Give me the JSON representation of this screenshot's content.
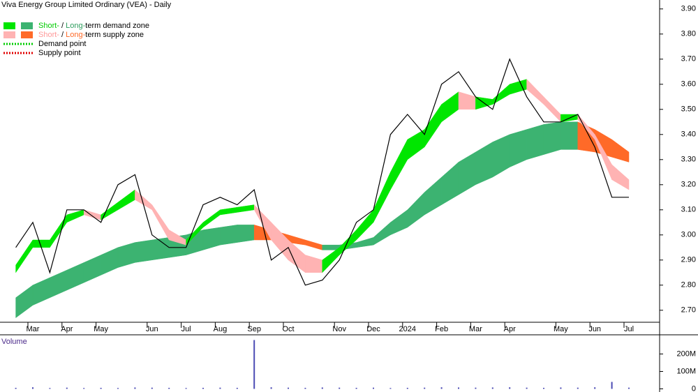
{
  "chart_data": [
    {
      "type": "price-bands",
      "title": "Viva Energy Group Limited Ordinary (VEA) - Daily",
      "categories": [
        null,
        "Mar",
        null,
        "Apr",
        null,
        "May",
        null,
        null,
        "Jun",
        null,
        "Jul",
        null,
        "Aug",
        null,
        "Sep",
        null,
        "Oct",
        null,
        null,
        "Nov",
        null,
        "Dec",
        null,
        "2024",
        null,
        "Feb",
        null,
        "Mar",
        null,
        "Apr",
        null,
        null,
        "May",
        null,
        "Jun",
        null,
        "Jul"
      ],
      "close": [
        2.95,
        3.05,
        2.85,
        3.1,
        3.1,
        3.05,
        3.2,
        3.24,
        3.0,
        2.95,
        2.95,
        3.12,
        3.15,
        3.12,
        3.18,
        2.9,
        2.95,
        2.8,
        2.82,
        2.9,
        3.05,
        3.1,
        3.4,
        3.48,
        3.4,
        3.6,
        3.65,
        3.55,
        3.5,
        3.7,
        3.55,
        3.45,
        3.45,
        3.48,
        3.35,
        3.15,
        3.15
      ],
      "close_color": "#000000",
      "bands": [
        {
          "upper": [
            2.75,
            2.8,
            2.83,
            2.86,
            2.89,
            2.92,
            2.95,
            2.97,
            2.98,
            2.99,
            3.0,
            3.02,
            3.03,
            3.04,
            3.04,
            3.02,
            3.0,
            2.98,
            2.96,
            2.96,
            2.97,
            2.99,
            3.05,
            3.1,
            3.17,
            3.23,
            3.29,
            3.33,
            3.37,
            3.4,
            3.42,
            3.44,
            3.45,
            3.45,
            3.42,
            3.38,
            3.33
          ],
          "lower": [
            2.67,
            2.72,
            2.75,
            2.78,
            2.81,
            2.84,
            2.87,
            2.89,
            2.9,
            2.91,
            2.92,
            2.94,
            2.96,
            2.97,
            2.98,
            2.98,
            2.97,
            2.96,
            2.94,
            2.94,
            2.95,
            2.96,
            3.0,
            3.03,
            3.08,
            3.12,
            3.16,
            3.2,
            3.23,
            3.27,
            3.3,
            3.32,
            3.34,
            3.34,
            3.33,
            3.31,
            3.29
          ],
          "rise_color": "#3cb371",
          "fall_color": "#ff6a28"
        },
        {
          "upper": [
            2.88,
            2.98,
            2.98,
            3.08,
            3.1,
            3.08,
            3.13,
            3.18,
            3.12,
            3.02,
            2.98,
            3.05,
            3.1,
            3.11,
            3.12,
            3.05,
            2.98,
            2.92,
            2.9,
            2.95,
            3.02,
            3.1,
            3.25,
            3.38,
            3.42,
            3.52,
            3.57,
            3.55,
            3.54,
            3.6,
            3.62,
            3.55,
            3.48,
            3.48,
            3.4,
            3.28,
            3.22
          ],
          "lower": [
            2.85,
            2.95,
            2.95,
            3.05,
            3.08,
            3.06,
            3.1,
            3.14,
            3.1,
            2.98,
            2.96,
            3.03,
            3.08,
            3.09,
            3.1,
            2.98,
            2.9,
            2.85,
            2.85,
            2.92,
            2.98,
            3.05,
            3.18,
            3.3,
            3.35,
            3.45,
            3.5,
            3.5,
            3.52,
            3.56,
            3.58,
            3.52,
            3.45,
            3.46,
            3.38,
            3.22,
            3.18
          ],
          "rise_color": "#00e600",
          "fall_color": "#ffb3b3"
        }
      ],
      "ylim": [
        2.63,
        3.93
      ],
      "yticks": [
        {
          "value": 2.7,
          "label": "2.70"
        },
        {
          "value": 2.8,
          "label": "2.80"
        },
        {
          "value": 2.9,
          "label": "2.90"
        },
        {
          "value": 3.0,
          "label": "3.00"
        },
        {
          "value": 3.1,
          "label": "3.10"
        },
        {
          "value": 3.2,
          "label": "3.20"
        },
        {
          "value": 3.3,
          "label": "3.30"
        },
        {
          "value": 3.4,
          "label": "3.40"
        },
        {
          "value": 3.5,
          "label": "3.50"
        },
        {
          "value": 3.6,
          "label": "3.60"
        },
        {
          "value": 3.7,
          "label": "3.70"
        },
        {
          "value": 3.8,
          "label": "3.80"
        },
        {
          "value": 3.9,
          "label": "3.90"
        }
      ],
      "legend": [
        {
          "parts": [
            "Short-",
            " / ",
            "Long-",
            "term demand zone"
          ],
          "part_colors": [
            "#00cc00",
            "#000000",
            "#2e9e5e",
            "#000000"
          ],
          "swatches": [
            "#00e600",
            "#3cb371"
          ]
        },
        {
          "parts": [
            "Short-",
            " / ",
            "Long-",
            "term supply zone"
          ],
          "part_colors": [
            "#ff9999",
            "#000000",
            "#ff6a28",
            "#000000"
          ],
          "swatches": [
            "#ffb3b3",
            "#ff6a28"
          ]
        },
        {
          "parts": [
            "Demand point"
          ],
          "part_colors": [
            "#000000"
          ],
          "dotted": "#00cc00"
        },
        {
          "parts": [
            "Supply point"
          ],
          "part_colors": [
            "#000000"
          ],
          "dotted": "#e00000"
        }
      ]
    },
    {
      "type": "bar",
      "title": "Volume",
      "color": "#4b4bb4",
      "values": [
        6000000,
        9000000,
        5000000,
        7000000,
        5000000,
        6000000,
        5000000,
        8000000,
        7000000,
        6000000,
        5000000,
        6000000,
        7000000,
        6000000,
        280000000,
        9000000,
        7000000,
        6000000,
        8000000,
        7000000,
        6000000,
        7000000,
        5000000,
        6000000,
        7000000,
        9000000,
        8000000,
        7000000,
        8000000,
        9000000,
        7000000,
        6000000,
        8000000,
        7000000,
        9000000,
        40000000,
        7000000
      ],
      "ylim": [
        0,
        290000000
      ],
      "yticks": [
        0,
        {
          "value": 100000000,
          "label": "100M"
        },
        {
          "value": 200000000,
          "label": "200M"
        }
      ]
    }
  ]
}
